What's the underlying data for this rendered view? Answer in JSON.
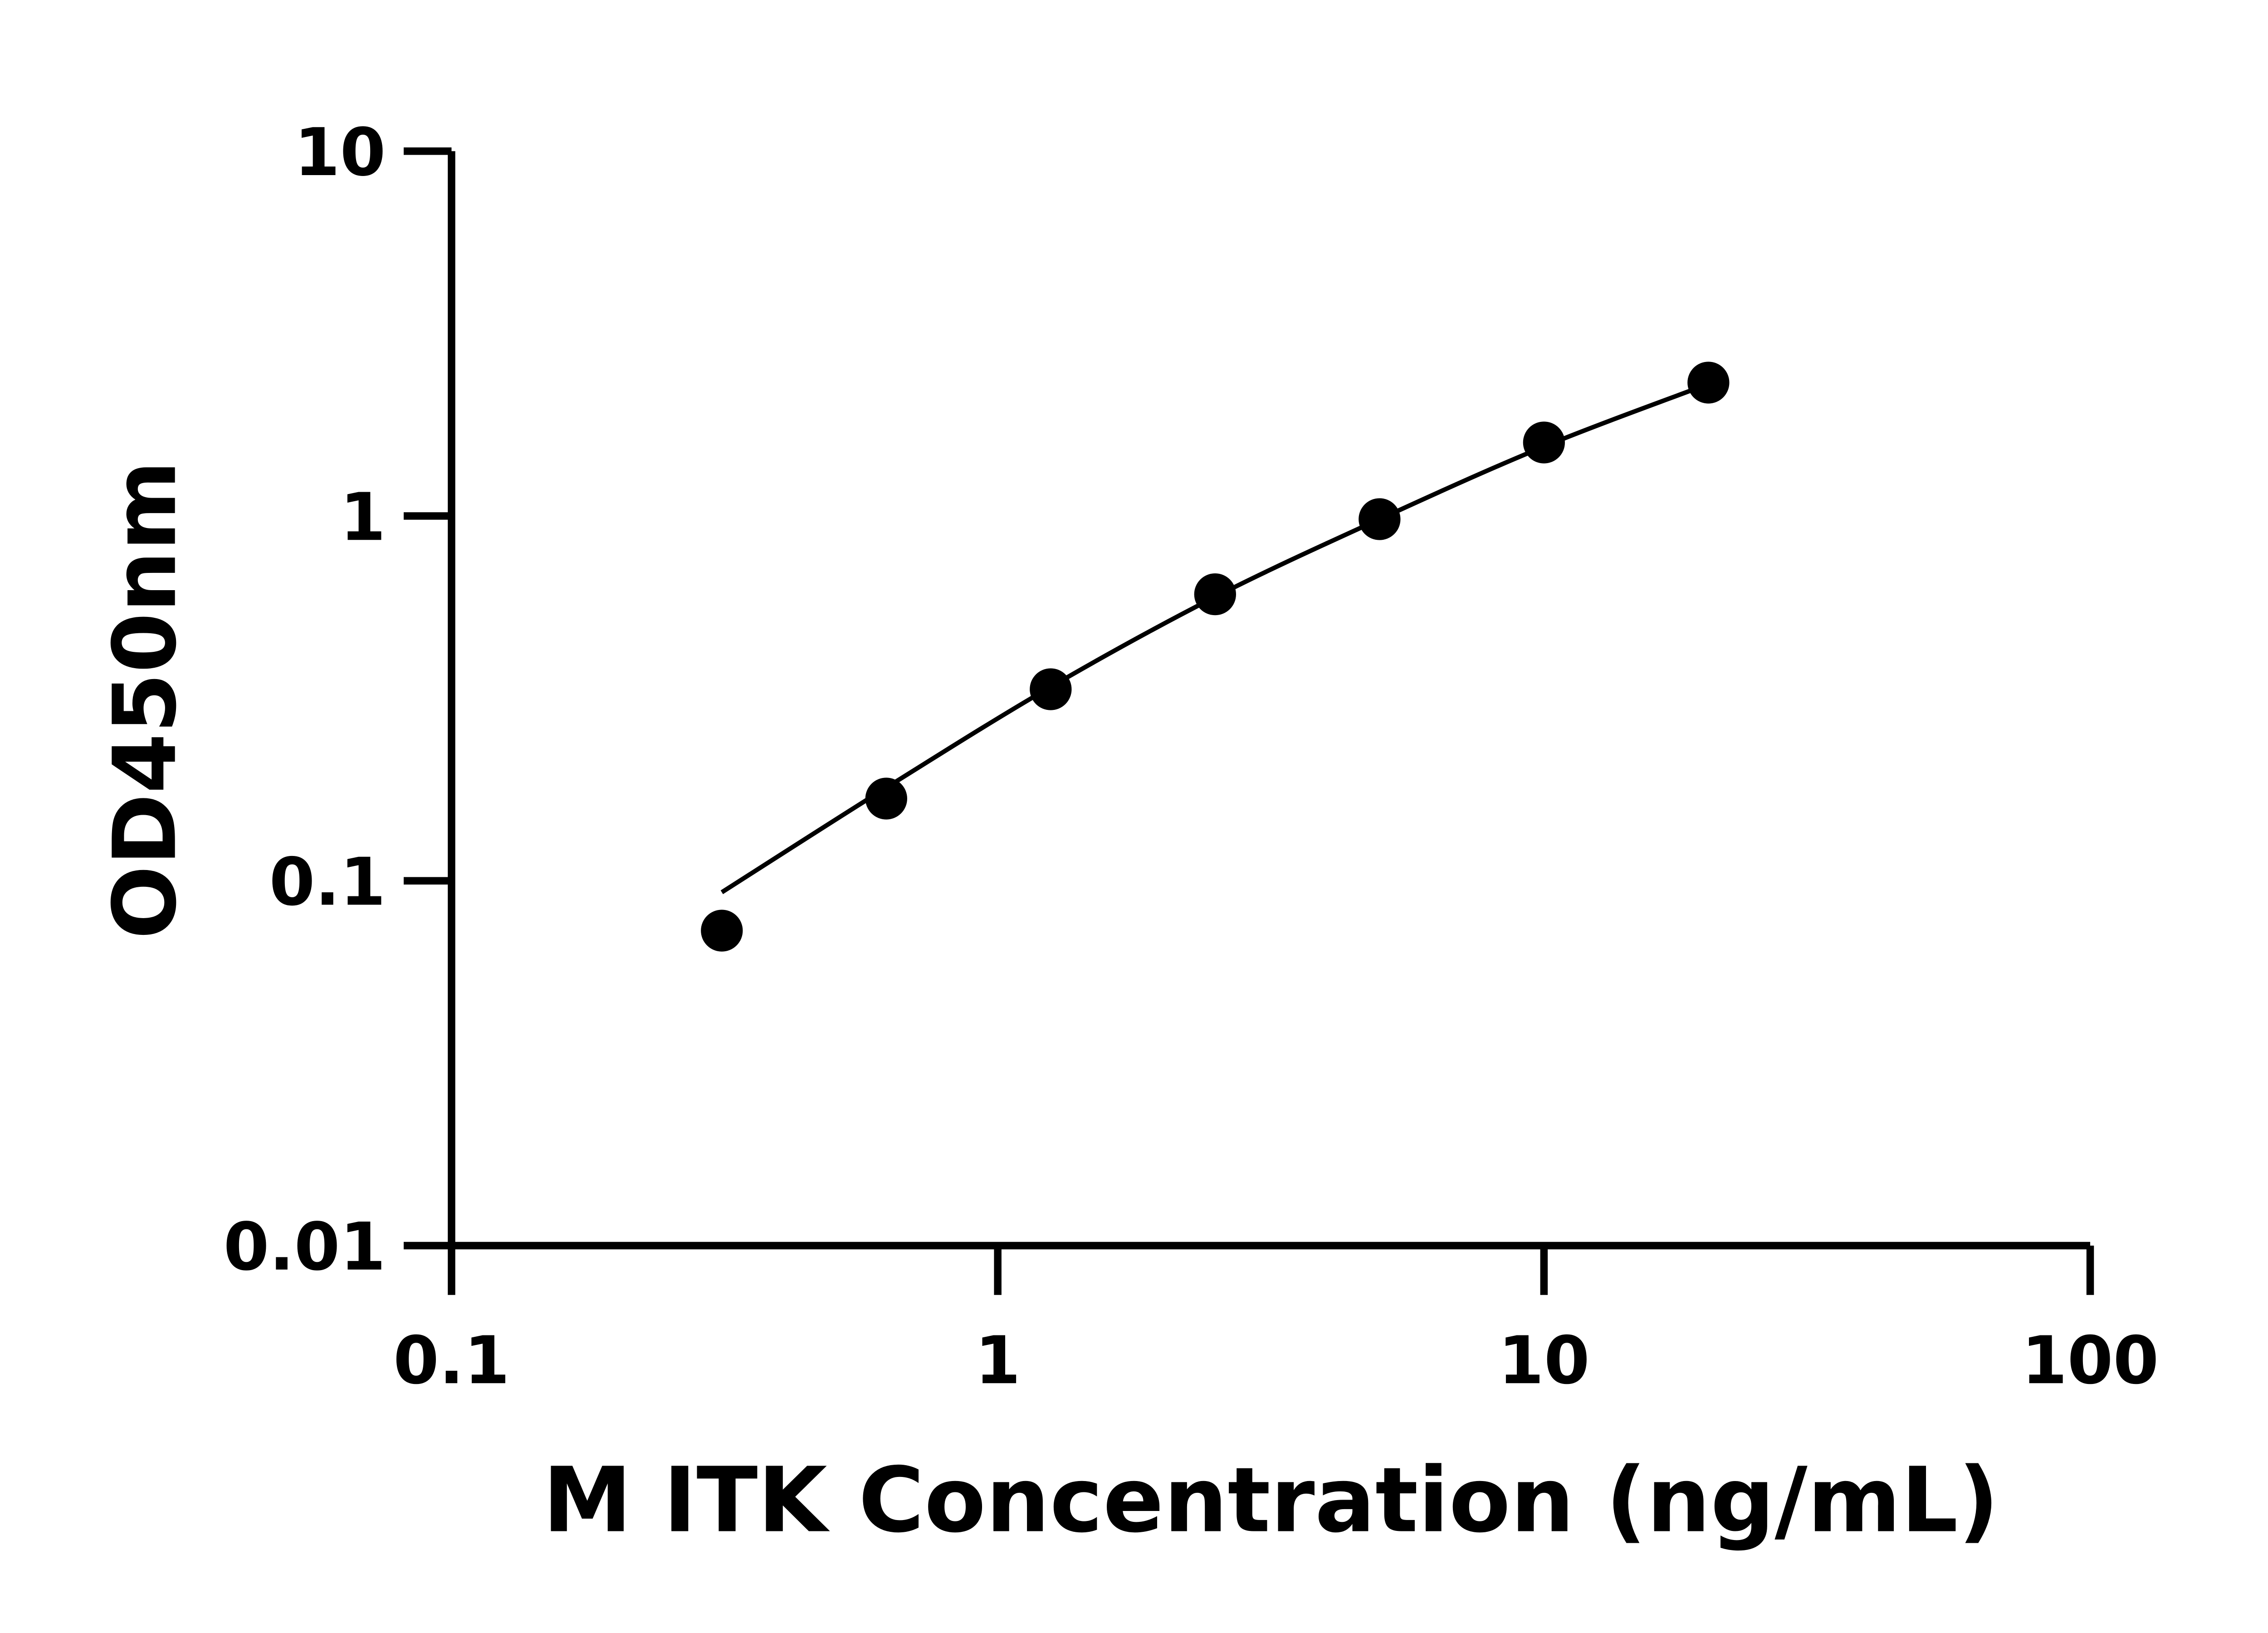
{
  "chart_data": {
    "type": "scatter",
    "title": "",
    "xlabel": "M ITK Concentration (ng/mL)",
    "ylabel": "OD450nm",
    "x_scale": "log",
    "y_scale": "log",
    "xlim": [
      0.1,
      100
    ],
    "ylim": [
      0.01,
      10
    ],
    "x_ticks": [
      0.1,
      1,
      10,
      100
    ],
    "x_tick_labels": [
      "0.1",
      "1",
      "10",
      "100"
    ],
    "y_ticks": [
      0.01,
      0.1,
      1,
      10
    ],
    "y_tick_labels": [
      "0.01",
      "0.1",
      "1",
      "10"
    ],
    "grid": false,
    "legend": "none",
    "color": "#000000",
    "points": {
      "x": [
        0.3125,
        0.625,
        1.25,
        2.5,
        5,
        10,
        20
      ],
      "y": [
        0.073,
        0.168,
        0.335,
        0.61,
        0.98,
        1.59,
        2.32
      ]
    },
    "fit_curve": {
      "x": [
        0.3125,
        0.625,
        1.25,
        2.5,
        5,
        10,
        20
      ],
      "y": [
        0.093,
        0.18,
        0.34,
        0.6,
        0.98,
        1.55,
        2.3
      ]
    }
  }
}
